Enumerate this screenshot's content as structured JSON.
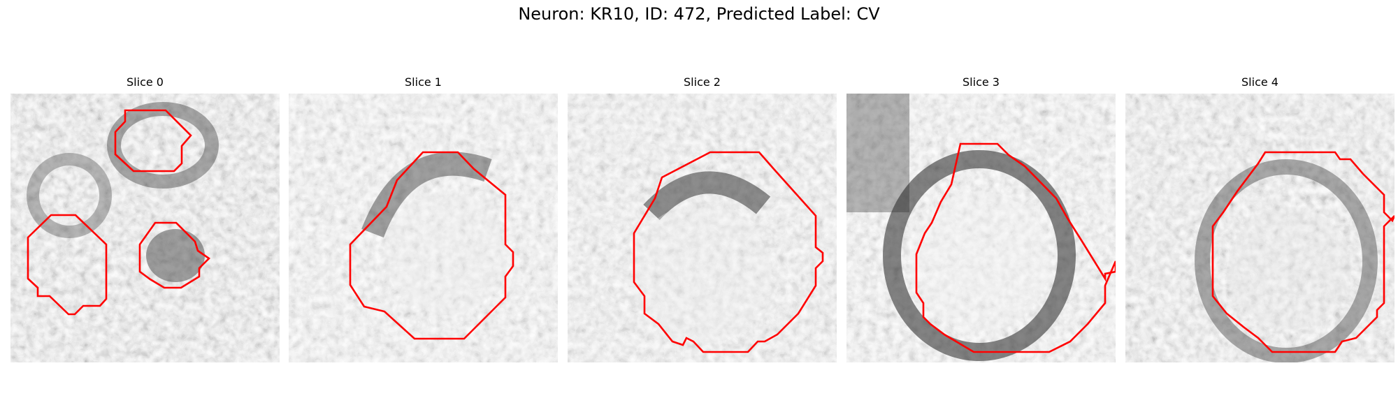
{
  "figure": {
    "title": "Neuron: KR10, ID: 472, Predicted Label: CV"
  },
  "panels": [
    {
      "title": "Slice 0"
    },
    {
      "title": "Slice 1"
    },
    {
      "title": "Slice 2"
    },
    {
      "title": "Slice 3"
    },
    {
      "title": "Slice 4"
    }
  ],
  "colors": {
    "contour": "#ff0000",
    "colormap": "grayscale"
  }
}
